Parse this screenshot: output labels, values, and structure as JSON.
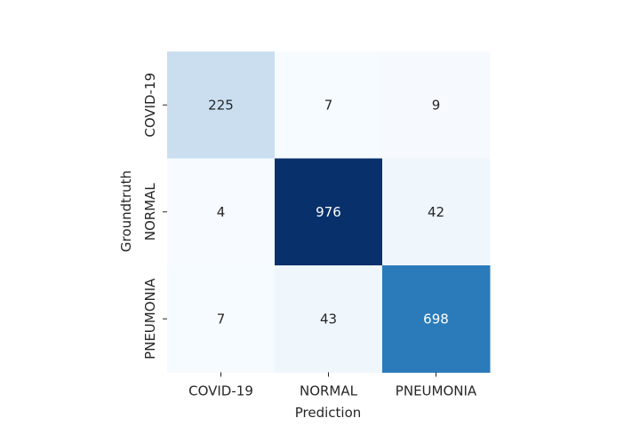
{
  "chart_data": {
    "type": "heatmap",
    "title": "",
    "xlabel": "Prediction",
    "ylabel": "Groundtruth",
    "x_categories": [
      "COVID-19",
      "NORMAL",
      "PNEUMONIA"
    ],
    "y_categories": [
      "COVID-19",
      "NORMAL",
      "PNEUMONIA"
    ],
    "values": [
      [
        225,
        7,
        9
      ],
      [
        4,
        976,
        42
      ],
      [
        7,
        43,
        698
      ]
    ],
    "colormap": "Blues",
    "colorbar": false,
    "grid": false
  }
}
